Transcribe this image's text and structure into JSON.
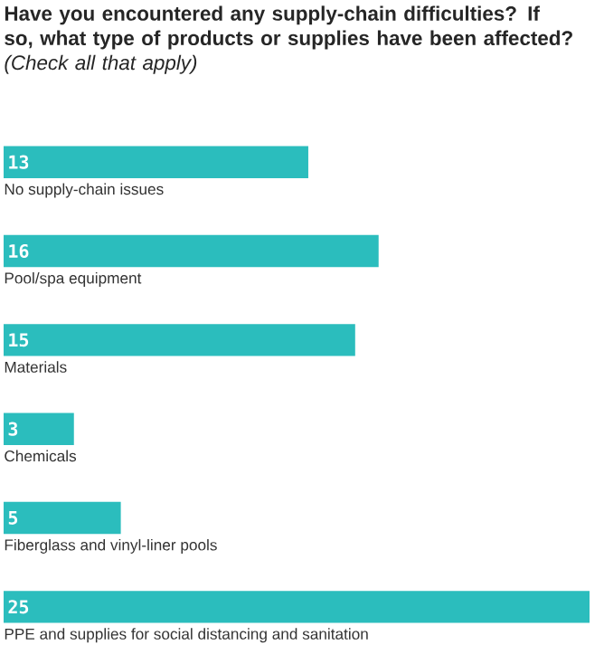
{
  "chart_data": {
    "type": "bar",
    "orientation": "horizontal",
    "title": "**Have you encountered any supply-chain difficulties? If so, what type of products or supplies have been affected?** *(Check all that apply)*",
    "categories": [
      "No supply-chain issues",
      "Pool/spa equipment",
      "Materials",
      "Chemicals",
      "Fiberglass and vinyl-liner pools",
      "PPE and supplies for social distancing and sanitation"
    ],
    "values": [
      13,
      16,
      15,
      3,
      5,
      25
    ],
    "color": "#2bbdbd",
    "data_labels": true
  }
}
